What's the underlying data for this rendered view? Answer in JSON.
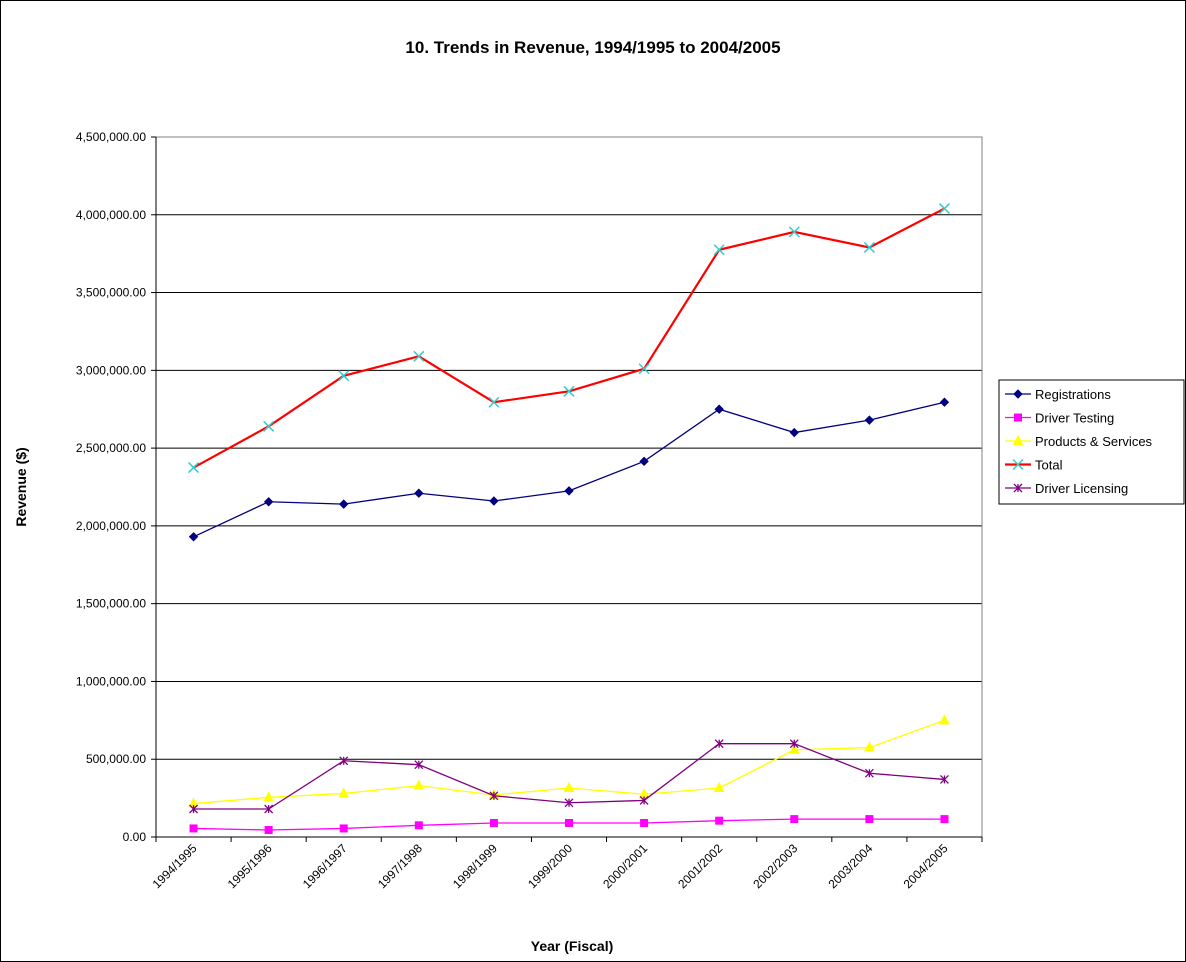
{
  "chart_data": {
    "type": "line",
    "title": "10. Trends in Revenue, 1994/1995 to 2004/2005",
    "xlabel": "Year (Fiscal)",
    "ylabel": "Revenue ($)",
    "ylim": [
      0,
      4500000
    ],
    "ytick_step": 500000,
    "ytick_labels": [
      "0.00",
      "500,000.00",
      "1,000,000.00",
      "1,500,000.00",
      "2,000,000.00",
      "2,500,000.00",
      "3,000,000.00",
      "3,500,000.00",
      "4,000,000.00",
      "4,500,000.00"
    ],
    "grid": true,
    "legend_position": "right",
    "categories": [
      "1994/1995",
      "1995/1996",
      "1996/1997",
      "1997/1998",
      "1998/1999",
      "1999/2000",
      "2000/2001",
      "2001/2002",
      "2002/2003",
      "2003/2004",
      "2004/2005"
    ],
    "series": [
      {
        "name": "Registrations",
        "color": "#000080",
        "marker": "diamond",
        "values": [
          1930000,
          2155000,
          2140000,
          2210000,
          2160000,
          2225000,
          2415000,
          2750000,
          2600000,
          2680000,
          2795000
        ]
      },
      {
        "name": "Driver Testing",
        "color": "#ff00ff",
        "marker": "square",
        "values": [
          55000,
          45000,
          55000,
          75000,
          90000,
          90000,
          90000,
          105000,
          115000,
          115000,
          115000
        ]
      },
      {
        "name": "Products & Services",
        "color": "#ffff00",
        "marker": "triangle",
        "values": [
          215000,
          255000,
          280000,
          330000,
          270000,
          315000,
          275000,
          315000,
          560000,
          575000,
          750000
        ]
      },
      {
        "name": "Total",
        "color": "#ff0000",
        "marker": "x",
        "marker_color": "#33cccc",
        "line_width": 2.2,
        "values": [
          2375000,
          2640000,
          2965000,
          3090000,
          2795000,
          2865000,
          3010000,
          3775000,
          3890000,
          3790000,
          4040000
        ]
      },
      {
        "name": "Driver Licensing",
        "color": "#800080",
        "marker": "star",
        "values": [
          180000,
          180000,
          490000,
          465000,
          265000,
          220000,
          235000,
          600000,
          600000,
          410000,
          370000
        ]
      }
    ]
  }
}
